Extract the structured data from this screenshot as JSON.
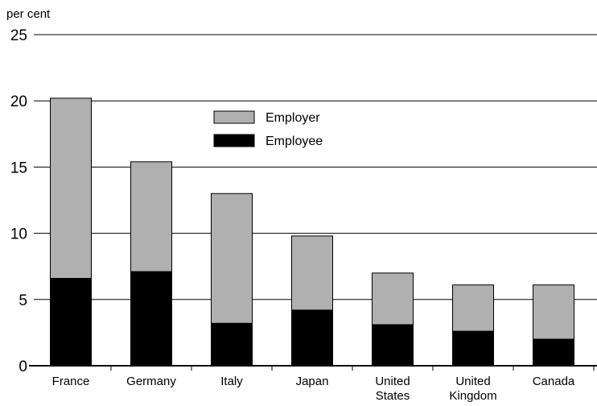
{
  "chart_data": {
    "type": "bar",
    "stacked": true,
    "title": "",
    "ylabel": "per cent",
    "xlabel": "",
    "ylim": [
      0,
      25
    ],
    "yticks": [
      0,
      5,
      10,
      15,
      20,
      25
    ],
    "grid": true,
    "legend_position": "top-center",
    "categories": [
      [
        "France"
      ],
      [
        "Germany"
      ],
      [
        "Italy"
      ],
      [
        "Japan"
      ],
      [
        "United",
        "States"
      ],
      [
        "United",
        "Kingdom"
      ],
      [
        "Canada"
      ]
    ],
    "series": [
      {
        "name": "Employee",
        "color": "#000000",
        "values": [
          6.6,
          7.1,
          3.2,
          4.2,
          3.1,
          2.6,
          2.0
        ]
      },
      {
        "name": "Employer",
        "color": "#b0b0b0",
        "values": [
          13.6,
          8.3,
          9.8,
          5.6,
          3.9,
          3.5,
          4.1
        ]
      }
    ],
    "legend_order": [
      "Employer",
      "Employee"
    ]
  }
}
